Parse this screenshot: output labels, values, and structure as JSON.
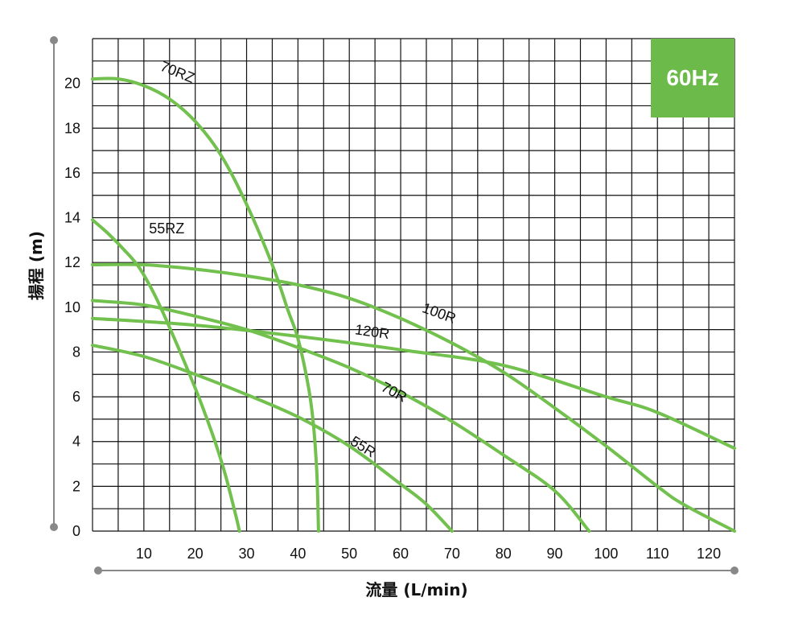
{
  "badge": "60Hz",
  "colors": {
    "curve": "#72c04e",
    "badge": "#6cbb4a",
    "grid": "#111111",
    "axis": "#888888"
  },
  "chart_data": {
    "type": "line",
    "xlabel": "流量 (L/min)",
    "ylabel": "揚程 (m)",
    "xlim": [
      0,
      125
    ],
    "ylim": [
      0,
      22
    ],
    "xticks": [
      10,
      20,
      30,
      40,
      50,
      60,
      70,
      80,
      90,
      100,
      110,
      120
    ],
    "yticks": [
      0,
      2,
      4,
      6,
      8,
      10,
      12,
      14,
      16,
      18,
      20
    ],
    "grid": true,
    "series": [
      {
        "name": "70RZ",
        "label_at": [
          13,
          20.6
        ],
        "label_rot": 22,
        "points": [
          [
            0,
            20.2
          ],
          [
            5,
            20.2
          ],
          [
            10,
            19.9
          ],
          [
            15,
            19.3
          ],
          [
            20,
            18.3
          ],
          [
            25,
            16.8
          ],
          [
            30,
            14.6
          ],
          [
            35,
            11.9
          ],
          [
            38,
            9.9
          ],
          [
            40,
            8.6
          ],
          [
            42,
            6.5
          ],
          [
            43,
            4.8
          ],
          [
            43.7,
            2.5
          ],
          [
            44,
            0
          ]
        ]
      },
      {
        "name": "55RZ",
        "label_at": [
          11,
          13.3
        ],
        "label_rot": 0,
        "points": [
          [
            0,
            13.9
          ],
          [
            3,
            13.3
          ],
          [
            6,
            12.6
          ],
          [
            9,
            11.8
          ],
          [
            12,
            10.6
          ],
          [
            15,
            9.1
          ],
          [
            18,
            7.5
          ],
          [
            21,
            5.8
          ],
          [
            24,
            3.9
          ],
          [
            26,
            2.4
          ],
          [
            28,
            0.6
          ],
          [
            28.6,
            0
          ]
        ]
      },
      {
        "name": "100R",
        "label_at": [
          64,
          9.8
        ],
        "label_rot": 20,
        "points": [
          [
            0,
            11.9
          ],
          [
            10,
            11.9
          ],
          [
            20,
            11.7
          ],
          [
            30,
            11.4
          ],
          [
            40,
            11.0
          ],
          [
            50,
            10.4
          ],
          [
            60,
            9.5
          ],
          [
            70,
            8.4
          ],
          [
            80,
            7.1
          ],
          [
            90,
            5.5
          ],
          [
            100,
            3.8
          ],
          [
            110,
            2.0
          ],
          [
            115,
            1.2
          ],
          [
            125,
            0
          ]
        ]
      },
      {
        "name": "120R",
        "label_at": [
          51,
          8.8
        ],
        "label_rot": 8,
        "points": [
          [
            0,
            9.5
          ],
          [
            20,
            9.2
          ],
          [
            40,
            8.7
          ],
          [
            60,
            8.1
          ],
          [
            80,
            7.4
          ],
          [
            100,
            6.0
          ],
          [
            110,
            5.3
          ],
          [
            125,
            3.7
          ]
        ]
      },
      {
        "name": "70R",
        "label_at": [
          56,
          6.3
        ],
        "label_rot": 28,
        "points": [
          [
            0,
            10.3
          ],
          [
            10,
            10.1
          ],
          [
            20,
            9.6
          ],
          [
            30,
            9.0
          ],
          [
            40,
            8.2
          ],
          [
            50,
            7.3
          ],
          [
            60,
            6.2
          ],
          [
            70,
            4.9
          ],
          [
            80,
            3.4
          ],
          [
            90,
            1.8
          ],
          [
            96.7,
            0
          ]
        ]
      },
      {
        "name": "55R",
        "label_at": [
          50,
          3.9
        ],
        "label_rot": 32,
        "points": [
          [
            0,
            8.3
          ],
          [
            10,
            7.8
          ],
          [
            20,
            7.0
          ],
          [
            30,
            6.1
          ],
          [
            40,
            5.1
          ],
          [
            50,
            3.8
          ],
          [
            60,
            2.1
          ],
          [
            65,
            1.2
          ],
          [
            70,
            0
          ]
        ]
      }
    ]
  }
}
